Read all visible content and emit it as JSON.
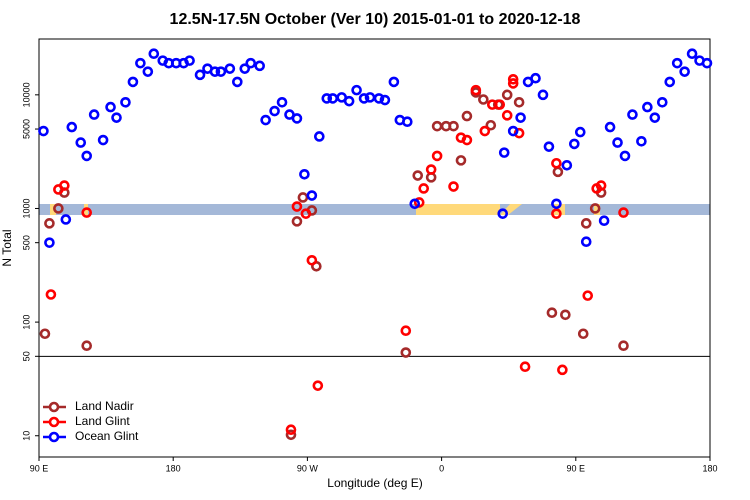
{
  "chart_data": {
    "type": "scatter",
    "title": "12.5N-17.5N October (Ver 10)   2015-01-01 to 2020-12-18",
    "xlabel": "Longitude (deg E)",
    "ylabel": "N Total",
    "log_y": true,
    "legend": "lower left",
    "hline": 50,
    "xlim": [
      90,
      540
    ],
    "ylim": [
      6.5,
      31000
    ],
    "xticks": [
      {
        "value": 90,
        "label": "90 E"
      },
      180,
      {
        "value": 270,
        "label": "90 W"
      },
      {
        "value": 360,
        "label": "0"
      },
      {
        "value": 450,
        "label": "90 E"
      },
      {
        "value": 540,
        "label": "180"
      }
    ],
    "yticks": [
      10,
      50,
      100,
      500,
      1000,
      5000,
      10000
    ],
    "series": [
      {
        "name": "Land Nadir",
        "color": "#a52a2a",
        "x": [
          94,
          97,
          103,
          107,
          122,
          263,
          267,
          273,
          276,
          336,
          344,
          353,
          357,
          363,
          368,
          373,
          377,
          383,
          388,
          393,
          398,
          404,
          412,
          434,
          438,
          443,
          455,
          457,
          463,
          467,
          482,
          259
        ],
        "values": [
          79,
          740,
          1000,
          1380,
          62,
          770,
          1250,
          960,
          310,
          54,
          1950,
          1880,
          5300,
          5300,
          5300,
          2650,
          6500,
          10500,
          9100,
          5400,
          8200,
          10000,
          8600,
          121,
          2100,
          116,
          79,
          740,
          1000,
          1380,
          62,
          10.2
        ]
      },
      {
        "name": "Land Glint",
        "color": "#ff0000",
        "x": [
          98,
          103,
          107,
          122,
          263,
          269,
          273,
          259,
          277,
          336,
          345,
          348,
          353,
          357,
          368,
          373,
          377,
          383,
          389,
          394,
          399,
          404,
          408,
          408,
          412,
          416,
          437,
          437,
          441,
          458,
          464,
          467,
          482
        ],
        "values": [
          175,
          1470,
          1590,
          920,
          1040,
          900,
          350,
          11.3,
          27.6,
          84,
          1130,
          1500,
          2200,
          2900,
          1560,
          4200,
          4000,
          11000,
          4800,
          8200,
          8200,
          6600,
          13700,
          12600,
          4600,
          40.5,
          900,
          2500,
          38,
          171,
          1500,
          1590,
          920
        ]
      },
      {
        "name": "Ocean Glint",
        "color": "#0000ff",
        "x": [
          93,
          97,
          108,
          112,
          118,
          122,
          127,
          133,
          138,
          142,
          148,
          153,
          158,
          163,
          167,
          173,
          177,
          182,
          187,
          191,
          198,
          203,
          208,
          212,
          218,
          223,
          228,
          232,
          238,
          242,
          248,
          253,
          258,
          263,
          268,
          273,
          278,
          283,
          287,
          293,
          298,
          303,
          308,
          312,
          318,
          322,
          328,
          332,
          337,
          342,
          401,
          402,
          408,
          413,
          418,
          423,
          428,
          432,
          437,
          444,
          449,
          453,
          457,
          469,
          473,
          478,
          483,
          488,
          494,
          498,
          503,
          508,
          513,
          518,
          523,
          528,
          533,
          538
        ],
        "values": [
          4800,
          500,
          800,
          5200,
          3800,
          2900,
          6700,
          4000,
          7800,
          6300,
          8600,
          13000,
          19000,
          16000,
          23000,
          20000,
          19000,
          19000,
          19000,
          20000,
          15000,
          17000,
          16000,
          16000,
          17000,
          13000,
          17000,
          19000,
          18000,
          6000,
          7200,
          8600,
          6700,
          6200,
          2000,
          1300,
          4300,
          9300,
          9300,
          9500,
          8800,
          11000,
          9300,
          9500,
          9300,
          9000,
          13000,
          6000,
          5800,
          1100,
          900,
          3100,
          4800,
          6300,
          13000,
          14000,
          10000,
          3500,
          1100,
          2400,
          3700,
          4700,
          510,
          780,
          5200,
          3800,
          2900,
          6700,
          3900,
          7800,
          6300,
          8600,
          13000,
          19000,
          16000,
          23000,
          20000,
          19000
        ]
      }
    ]
  }
}
